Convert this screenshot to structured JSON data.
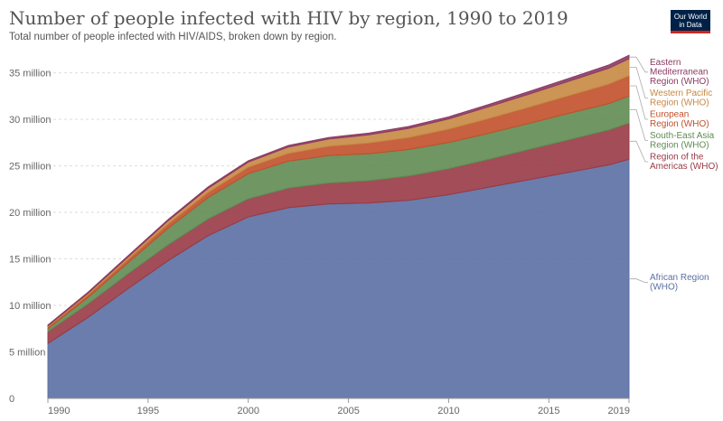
{
  "header": {
    "title": "Number of people infected with HIV by region, 1990 to 2019",
    "subtitle": "Total number of people infected with HIV/AIDS, broken down by region.",
    "logo_line1": "Our World",
    "logo_line2": "in Data"
  },
  "chart_data": {
    "type": "area",
    "stacked": true,
    "title": "Number of people infected with HIV by region, 1990 to 2019",
    "xlabel": "",
    "ylabel": "",
    "xlim": [
      1990,
      2019
    ],
    "ylim": [
      0,
      37000000
    ],
    "grid": "horizontal-dashed",
    "legend": "right",
    "x": [
      1990,
      1992,
      1994,
      1996,
      1998,
      2000,
      2002,
      2004,
      2006,
      2008,
      2010,
      2012,
      2014,
      2016,
      2018,
      2019
    ],
    "y_ticks": [
      0,
      5000000,
      10000000,
      15000000,
      20000000,
      25000000,
      30000000,
      35000000
    ],
    "y_tick_labels": [
      "0",
      "5 million",
      "10 million",
      "15 million",
      "20 million",
      "25 million",
      "30 million",
      "35 million"
    ],
    "x_ticks": [
      1990,
      1995,
      2000,
      2005,
      2010,
      2015,
      2019
    ],
    "x_tick_labels": [
      "1990",
      "1995",
      "2000",
      "2005",
      "2010",
      "2015",
      "2019"
    ],
    "series": [
      {
        "name": "African Region (WHO)",
        "color": "#5b6fa3",
        "legend_lines": [
          "African Region",
          "(WHO)"
        ],
        "values": [
          5900000,
          8700000,
          11800000,
          14800000,
          17500000,
          19500000,
          20500000,
          20900000,
          21000000,
          21300000,
          21900000,
          22700000,
          23500000,
          24300000,
          25100000,
          25700000
        ]
      },
      {
        "name": "Region of the Americas (WHO)",
        "color": "#983a45",
        "legend_lines": [
          "Region of the",
          "Americas (WHO)"
        ],
        "values": [
          1300000,
          1450000,
          1600000,
          1700000,
          1800000,
          1950000,
          2100000,
          2250000,
          2400000,
          2600000,
          2800000,
          3000000,
          3250000,
          3500000,
          3750000,
          3900000
        ]
      },
      {
        "name": "South-East Asia Region (WHO)",
        "color": "#5f8b52",
        "legend_lines": [
          "South-East Asia",
          "Region (WHO)"
        ],
        "values": [
          300000,
          700000,
          1200000,
          1800000,
          2300000,
          2700000,
          2900000,
          2950000,
          2900000,
          2850000,
          2800000,
          2800000,
          2800000,
          2850000,
          2850000,
          2900000
        ]
      },
      {
        "name": "European Region (WHO)",
        "color": "#c1502a",
        "legend_lines": [
          "European",
          "Region (WHO)"
        ],
        "values": [
          200000,
          280000,
          360000,
          450000,
          550000,
          700000,
          850000,
          1000000,
          1150000,
          1300000,
          1450000,
          1600000,
          1750000,
          1900000,
          2100000,
          2200000
        ]
      },
      {
        "name": "Western Pacific Region (WHO)",
        "color": "#c78843",
        "legend_lines": [
          "Western Pacific",
          "Region (WHO)"
        ],
        "values": [
          100000,
          170000,
          250000,
          350000,
          450000,
          550000,
          680000,
          780000,
          880000,
          980000,
          1100000,
          1250000,
          1400000,
          1550000,
          1700000,
          1800000
        ]
      },
      {
        "name": "Eastern Mediterranean Region (WHO)",
        "color": "#8b3a62",
        "legend_lines": [
          "Eastern",
          "Mediterranean",
          "Region (WHO)"
        ],
        "values": [
          100000,
          110000,
          120000,
          130000,
          140000,
          150000,
          160000,
          170000,
          185000,
          200000,
          220000,
          250000,
          280000,
          310000,
          350000,
          380000
        ]
      }
    ]
  }
}
